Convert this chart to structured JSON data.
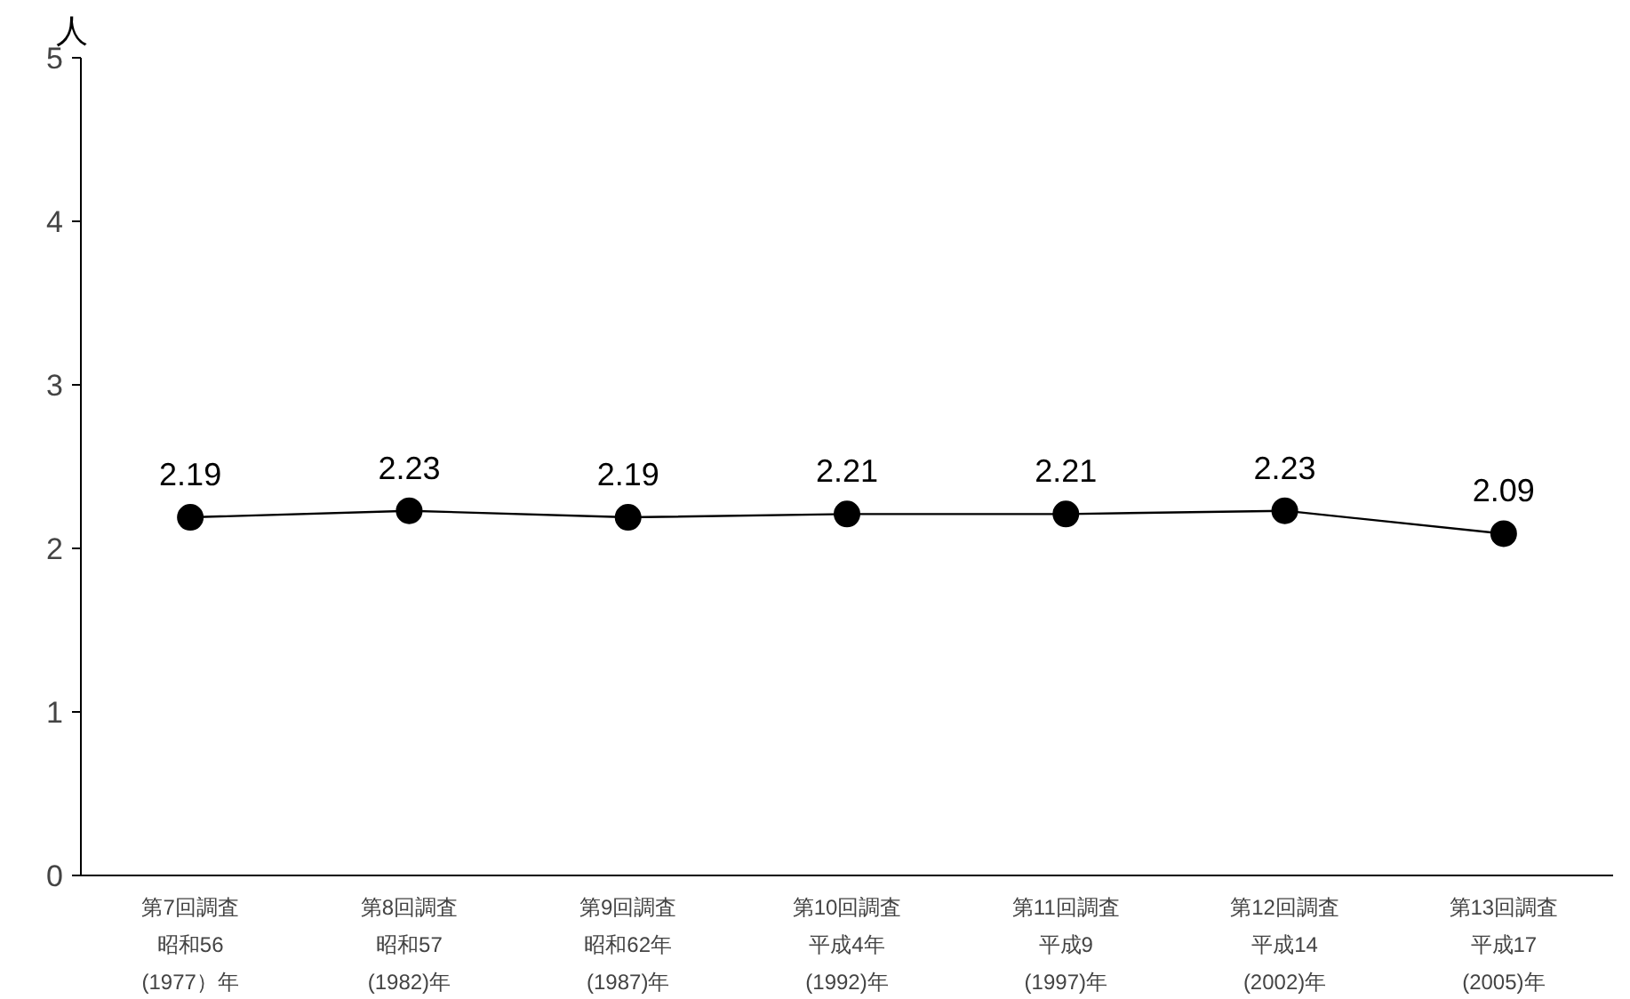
{
  "chart_data": {
    "type": "line",
    "ylabel": "人",
    "categories": [
      "第7回調査昭和56(1977）年",
      "第8回調査昭和57(1982)年",
      "第9回調査昭和62年(1987)年",
      "第10回調査平成4年(1992)年",
      "第11回調査平成9(1997)年",
      "第12回調査平成14(2002)年",
      "第13回調査平成17(2005)年"
    ],
    "values": [
      2.19,
      2.23,
      2.19,
      2.21,
      2.21,
      2.23,
      2.09
    ],
    "color": "#000000",
    "marker": "circle",
    "line_style": "solid",
    "data_labels": true,
    "grid": false,
    "ylim": [
      0,
      5
    ],
    "yticks": [
      0,
      1,
      2,
      3,
      4,
      5
    ]
  }
}
